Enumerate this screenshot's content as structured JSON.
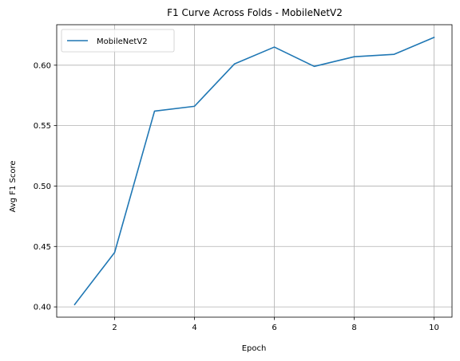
{
  "chart_data": {
    "type": "line",
    "title": "F1 Curve Across Folds - MobileNetV2",
    "xlabel": "Epoch",
    "ylabel": "Avg F1 Score",
    "xlim": [
      0.55,
      10.45
    ],
    "ylim": [
      0.3915,
      0.6335
    ],
    "xticks": [
      2,
      4,
      6,
      8,
      10
    ],
    "yticks": [
      0.4,
      0.45,
      0.5,
      0.55,
      0.6
    ],
    "xtick_labels": [
      "2",
      "4",
      "6",
      "8",
      "10"
    ],
    "ytick_labels": [
      "0.40",
      "0.45",
      "0.50",
      "0.55",
      "0.60"
    ],
    "grid": true,
    "legend_position": "top-left",
    "x": [
      1,
      2,
      3,
      4,
      5,
      6,
      7,
      8,
      9,
      10
    ],
    "series": [
      {
        "name": "MobileNetV2",
        "color": "#1f77b4",
        "values": [
          0.402,
          0.445,
          0.562,
          0.566,
          0.601,
          0.615,
          0.599,
          0.607,
          0.609,
          0.623
        ]
      }
    ]
  }
}
